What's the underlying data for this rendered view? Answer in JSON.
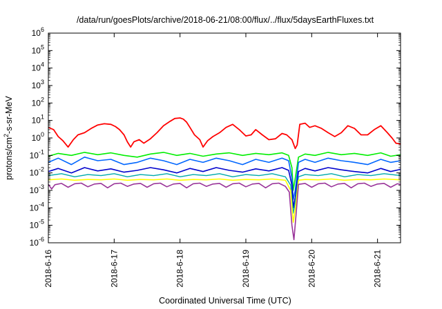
{
  "chart_data": {
    "type": "line",
    "title": "/data/run/goesPlots/archive/2018-06-21/08:00/flux/../flux/5daysEarthFluxes.txt",
    "xlabel": "Coordinated Universal Time (UTC)",
    "ylabel": {
      "pre": "protons/cm",
      "sup": "2",
      "post": "-s-sr-MeV"
    },
    "yscale": "log",
    "ylim": [
      1e-06,
      1000000.0
    ],
    "xlim": [
      0,
      5.35
    ],
    "grid": false,
    "legend": "none",
    "x_ticks": [
      {
        "label": "2018-6-16",
        "value": 0
      },
      {
        "label": "2018-6-17",
        "value": 1
      },
      {
        "label": "2018-6-18",
        "value": 2
      },
      {
        "label": "2018-6-19",
        "value": 3
      },
      {
        "label": "2018-6-20",
        "value": 4
      },
      {
        "label": "2018-6-21",
        "value": 5
      }
    ],
    "y_ticks": [
      {
        "base": "10",
        "exp": "6",
        "value": 1000000.0
      },
      {
        "base": "10",
        "exp": "5",
        "value": 100000.0
      },
      {
        "base": "10",
        "exp": "4",
        "value": 10000.0
      },
      {
        "base": "10",
        "exp": "3",
        "value": 1000.0
      },
      {
        "base": "10",
        "exp": "2",
        "value": 100.0
      },
      {
        "base": "10",
        "exp": "1",
        "value": 10.0
      },
      {
        "base": "10",
        "exp": "0",
        "value": 1.0
      },
      {
        "base": "10",
        "exp": "-1",
        "value": 0.1
      },
      {
        "base": "10",
        "exp": "-2",
        "value": 0.01
      },
      {
        "base": "10",
        "exp": "-3",
        "value": 0.001
      },
      {
        "base": "10",
        "exp": "-4",
        "value": 0.0001
      },
      {
        "base": "10",
        "exp": "-5",
        "value": 1e-05
      },
      {
        "base": "10",
        "exp": "-6",
        "value": 1e-06
      }
    ],
    "series": [
      {
        "color": "#ff0000",
        "width": 1.8,
        "x": [
          0,
          0.08,
          0.15,
          0.22,
          0.3,
          0.38,
          0.45,
          0.55,
          0.65,
          0.75,
          0.85,
          0.95,
          1.02,
          1.08,
          1.15,
          1.2,
          1.25,
          1.3,
          1.38,
          1.45,
          1.55,
          1.65,
          1.75,
          1.85,
          1.92,
          2.0,
          2.05,
          2.1,
          2.15,
          2.22,
          2.3,
          2.35,
          2.42,
          2.5,
          2.6,
          2.7,
          2.8,
          2.9,
          3.0,
          3.08,
          3.15,
          3.25,
          3.35,
          3.45,
          3.55,
          3.62,
          3.7,
          3.75,
          3.78,
          3.82,
          3.9,
          3.97,
          4.05,
          4.15,
          4.25,
          4.35,
          4.45,
          4.55,
          4.65,
          4.75,
          4.85,
          4.95,
          5.05,
          5.15,
          5.22,
          5.28,
          5.35
        ],
        "y": [
          4,
          3,
          1.2,
          0.7,
          0.3,
          0.8,
          1.5,
          2,
          3.5,
          5.5,
          6.5,
          6,
          4.5,
          3,
          1.5,
          0.6,
          0.3,
          0.6,
          0.8,
          0.5,
          0.9,
          2,
          5,
          9,
          13,
          14,
          12,
          8,
          4,
          1.5,
          0.8,
          0.3,
          0.7,
          1.2,
          2,
          4,
          6,
          3,
          1.3,
          1.5,
          3,
          1.5,
          0.8,
          0.9,
          1.8,
          1.5,
          0.8,
          0.25,
          0.4,
          6,
          7,
          4,
          5,
          3.5,
          2,
          1.2,
          2,
          5,
          3.5,
          1.5,
          1.5,
          3,
          5,
          2,
          1,
          0.5,
          0.45
        ]
      },
      {
        "color": "#00ee00",
        "width": 1.6,
        "x": [
          0,
          0.15,
          0.35,
          0.55,
          0.75,
          0.95,
          1.15,
          1.35,
          1.55,
          1.75,
          1.95,
          2.15,
          2.35,
          2.55,
          2.75,
          2.95,
          3.15,
          3.35,
          3.55,
          3.65,
          3.7,
          3.72,
          3.75,
          3.8,
          3.9,
          4.05,
          4.25,
          4.45,
          4.65,
          4.85,
          5.05,
          5.2,
          5.35
        ],
        "y": [
          0.09,
          0.13,
          0.1,
          0.15,
          0.11,
          0.14,
          0.1,
          0.08,
          0.12,
          0.15,
          0.1,
          0.13,
          0.09,
          0.12,
          0.14,
          0.1,
          0.13,
          0.11,
          0.14,
          0.1,
          0.02,
          0.001,
          0.005,
          0.08,
          0.12,
          0.1,
          0.15,
          0.11,
          0.13,
          0.1,
          0.14,
          0.09,
          0.11
        ]
      },
      {
        "color": "#0066ff",
        "width": 1.6,
        "x": [
          0,
          0.15,
          0.35,
          0.55,
          0.75,
          0.95,
          1.15,
          1.35,
          1.55,
          1.75,
          1.95,
          2.15,
          2.35,
          2.55,
          2.75,
          2.95,
          3.15,
          3.35,
          3.55,
          3.65,
          3.7,
          3.72,
          3.75,
          3.8,
          3.9,
          4.05,
          4.25,
          4.45,
          4.65,
          4.85,
          5.05,
          5.2,
          5.35
        ],
        "y": [
          0.04,
          0.07,
          0.03,
          0.08,
          0.05,
          0.06,
          0.03,
          0.04,
          0.07,
          0.05,
          0.03,
          0.06,
          0.04,
          0.07,
          0.05,
          0.03,
          0.06,
          0.04,
          0.07,
          0.05,
          0.005,
          0.0003,
          0.001,
          0.04,
          0.06,
          0.04,
          0.07,
          0.05,
          0.04,
          0.03,
          0.06,
          0.04,
          0.05
        ]
      },
      {
        "color": "#0000cc",
        "width": 1.6,
        "x": [
          0,
          0.15,
          0.35,
          0.55,
          0.75,
          0.95,
          1.15,
          1.35,
          1.55,
          1.75,
          1.95,
          2.15,
          2.35,
          2.55,
          2.75,
          2.95,
          3.15,
          3.35,
          3.55,
          3.65,
          3.7,
          3.72,
          3.75,
          3.8,
          3.9,
          4.05,
          4.25,
          4.45,
          4.65,
          4.85,
          5.05,
          5.2,
          5.35
        ],
        "y": [
          0.012,
          0.018,
          0.01,
          0.02,
          0.013,
          0.017,
          0.011,
          0.014,
          0.02,
          0.015,
          0.01,
          0.018,
          0.012,
          0.02,
          0.014,
          0.011,
          0.017,
          0.013,
          0.02,
          0.014,
          0.002,
          0.0001,
          0.0004,
          0.012,
          0.018,
          0.013,
          0.02,
          0.015,
          0.012,
          0.01,
          0.018,
          0.012,
          0.016
        ]
      },
      {
        "color": "#00aaaa",
        "width": 1.4,
        "x": [
          0,
          0.2,
          0.4,
          0.6,
          0.8,
          1.0,
          1.2,
          1.4,
          1.6,
          1.8,
          2.0,
          2.2,
          2.4,
          2.6,
          2.8,
          3.0,
          3.2,
          3.4,
          3.6,
          3.68,
          3.72,
          3.75,
          3.8,
          3.9,
          4.1,
          4.3,
          4.5,
          4.7,
          4.9,
          5.1,
          5.35
        ],
        "y": [
          0.007,
          0.009,
          0.006,
          0.008,
          0.007,
          0.009,
          0.006,
          0.008,
          0.007,
          0.009,
          0.006,
          0.008,
          0.007,
          0.009,
          0.006,
          0.008,
          0.007,
          0.009,
          0.006,
          0.002,
          5e-05,
          0.0002,
          0.006,
          0.008,
          0.007,
          0.009,
          0.006,
          0.008,
          0.007,
          0.009,
          0.007
        ]
      },
      {
        "color": "#ffff00",
        "width": 1.6,
        "x": [
          0,
          0.2,
          0.4,
          0.6,
          0.8,
          1.0,
          1.2,
          1.4,
          1.6,
          1.8,
          2.0,
          2.2,
          2.4,
          2.6,
          2.8,
          3.0,
          3.2,
          3.4,
          3.6,
          3.68,
          3.72,
          3.75,
          3.8,
          3.9,
          4.1,
          4.3,
          4.5,
          4.7,
          4.9,
          5.1,
          5.35
        ],
        "y": [
          0.004,
          0.0045,
          0.0038,
          0.0042,
          0.004,
          0.0045,
          0.0038,
          0.0042,
          0.004,
          0.0045,
          0.0038,
          0.0042,
          0.004,
          0.0045,
          0.0038,
          0.0042,
          0.004,
          0.0045,
          0.0038,
          0.001,
          1.5e-05,
          8e-05,
          0.0038,
          0.0042,
          0.004,
          0.0045,
          0.0038,
          0.0042,
          0.004,
          0.0045,
          0.004
        ]
      },
      {
        "color": "#993399",
        "width": 1.6,
        "x": [
          0,
          0.05,
          0.1,
          0.2,
          0.3,
          0.4,
          0.5,
          0.6,
          0.7,
          0.8,
          0.9,
          1.0,
          1.1,
          1.2,
          1.3,
          1.4,
          1.5,
          1.6,
          1.7,
          1.8,
          1.9,
          2.0,
          2.1,
          2.2,
          2.3,
          2.4,
          2.5,
          2.6,
          2.7,
          2.8,
          2.9,
          3.0,
          3.1,
          3.2,
          3.3,
          3.4,
          3.5,
          3.6,
          3.66,
          3.7,
          3.73,
          3.76,
          3.8,
          3.9,
          4.0,
          4.1,
          4.2,
          4.3,
          4.4,
          4.5,
          4.6,
          4.7,
          4.8,
          4.9,
          5.0,
          5.1,
          5.2,
          5.3,
          5.35
        ],
        "y": [
          0.0022,
          0.0012,
          0.0021,
          0.0025,
          0.0015,
          0.0024,
          0.0026,
          0.0016,
          0.0023,
          0.0025,
          0.0014,
          0.0024,
          0.0026,
          0.0017,
          0.0023,
          0.0025,
          0.0015,
          0.0024,
          0.0026,
          0.0016,
          0.0023,
          0.0025,
          0.0014,
          0.0024,
          0.0026,
          0.0017,
          0.0023,
          0.0025,
          0.0015,
          0.0024,
          0.0026,
          0.0016,
          0.0023,
          0.0025,
          0.0014,
          0.0024,
          0.0026,
          0.0017,
          0.0008,
          1e-05,
          1.5e-06,
          3e-05,
          0.0022,
          0.0025,
          0.0015,
          0.0024,
          0.0026,
          0.0016,
          0.0023,
          0.0025,
          0.0014,
          0.0024,
          0.0026,
          0.0017,
          0.0023,
          0.0025,
          0.0015,
          0.0024,
          0.0022
        ]
      }
    ]
  }
}
